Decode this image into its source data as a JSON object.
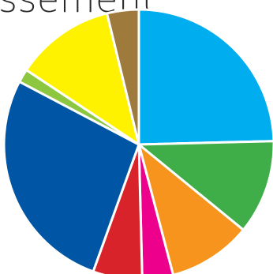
{
  "chart_data": {
    "type": "pie",
    "title": "ssement",
    "start_angle_deg": 0,
    "direction": "clockwise",
    "slice_border_color": "#ffffff",
    "slices": [
      {
        "value": 24.6,
        "color": "#00adef"
      },
      {
        "value": 11.3,
        "color": "#3fae49"
      },
      {
        "value": 10.0,
        "color": "#f7941d"
      },
      {
        "value": 3.7,
        "color": "#ec008c"
      },
      {
        "value": 5.9,
        "color": "#d8232a"
      },
      {
        "value": 27.2,
        "color": "#0055a5"
      },
      {
        "value": 1.6,
        "color": "#8dc63f"
      },
      {
        "value": 11.9,
        "color": "#fff200"
      },
      {
        "value": 3.8,
        "color": "#9e7b3c"
      }
    ]
  }
}
